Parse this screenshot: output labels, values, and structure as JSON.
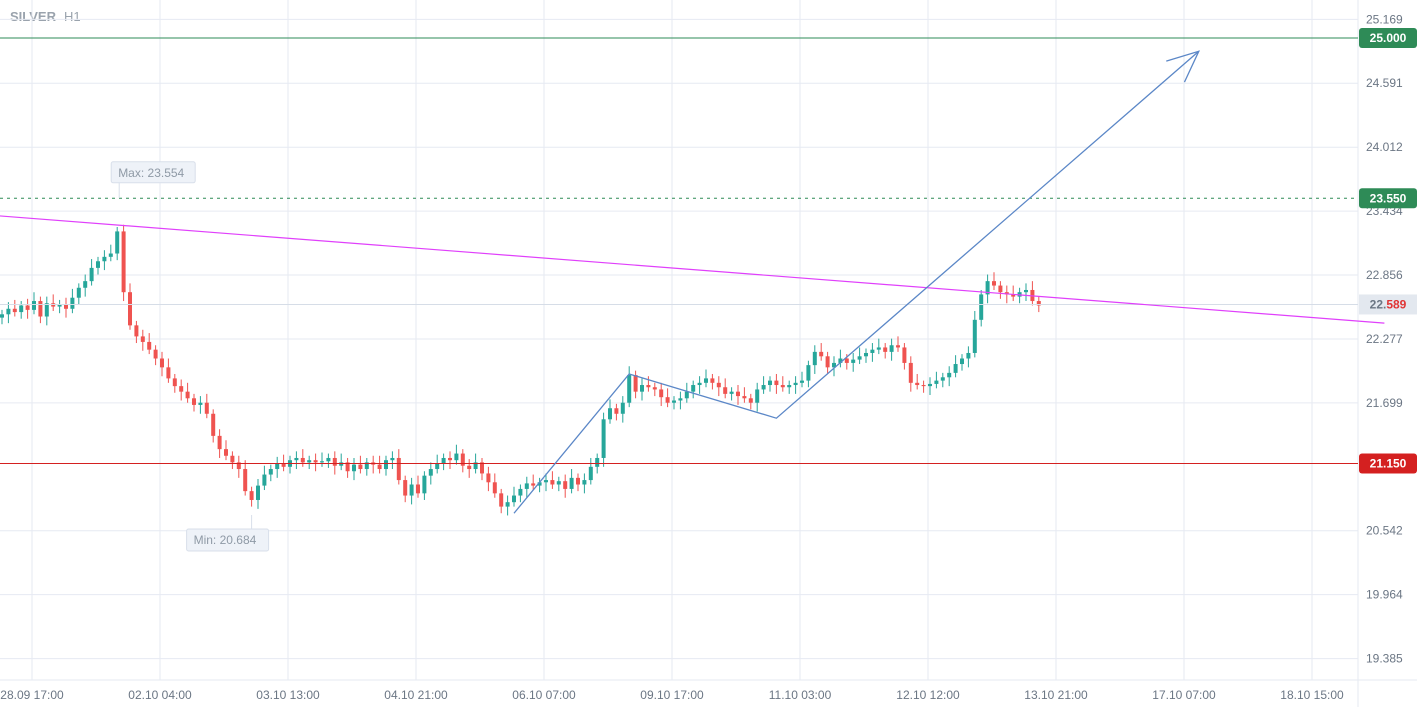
{
  "symbol": "SILVER",
  "timeframe": "H1",
  "colors": {
    "up": "#26a69a",
    "down": "#ef5350",
    "grid": "#e6eaf2",
    "resistance": "#2e8b57",
    "support": "#d42020",
    "trendline": "#e040fb",
    "projection": "#5b87c7",
    "dotted": "#2e8b57"
  },
  "chart_data": {
    "type": "candlestick",
    "y_ticks": [
      "25.169",
      "24.591",
      "24.012",
      "23.434",
      "22.856",
      "22.277",
      "21.699",
      "20.542",
      "19.964",
      "19.385"
    ],
    "ylim": [
      19.3,
      25.2
    ],
    "x_ticks": [
      "28.09 17:00",
      "02.10 04:00",
      "03.10 13:00",
      "04.10 21:00",
      "06.10 07:00",
      "09.10 17:00",
      "11.10 03:00",
      "12.10 12:00",
      "13.10 21:00",
      "17.10 07:00",
      "18.10 15:00"
    ],
    "levels": [
      {
        "name": "resistance",
        "value": 25.0,
        "label": "25.000"
      },
      {
        "name": "max-dotted",
        "value": 23.55,
        "label": "23.550"
      },
      {
        "name": "support",
        "value": 21.15,
        "label": "21.150"
      }
    ],
    "current_price": {
      "value": 22.589,
      "label_main": "22.",
      "label_tail": "589"
    },
    "max": {
      "value": 23.554,
      "label": "Max: 23.554"
    },
    "min": {
      "value": 20.684,
      "label": "Min: 20.684"
    },
    "trendline": {
      "from": [
        0,
        23.39
      ],
      "to": [
        216,
        22.42
      ]
    },
    "projection": {
      "points": [
        [
          80,
          20.7
        ],
        [
          98,
          21.96
        ],
        [
          121,
          21.56
        ],
        [
          187,
          24.88
        ]
      ]
    },
    "closes": [
      22.5,
      22.55,
      22.52,
      22.58,
      22.54,
      22.62,
      22.48,
      22.6,
      22.57,
      22.59,
      22.55,
      22.65,
      22.74,
      22.8,
      22.92,
      22.98,
      23.02,
      23.05,
      23.25,
      22.7,
      22.4,
      22.3,
      22.25,
      22.18,
      22.1,
      22.02,
      21.92,
      21.85,
      21.8,
      21.74,
      21.68,
      21.7,
      21.6,
      21.4,
      21.28,
      21.22,
      21.16,
      21.1,
      20.9,
      20.82,
      20.95,
      21.05,
      21.1,
      21.15,
      21.12,
      21.18,
      21.2,
      21.16,
      21.18,
      21.16,
      21.17,
      21.2,
      21.13,
      21.16,
      21.08,
      21.14,
      21.1,
      21.16,
      21.14,
      21.1,
      21.18,
      21.2,
      21.0,
      20.86,
      20.96,
      20.88,
      21.04,
      21.1,
      21.15,
      21.2,
      21.18,
      21.24,
      21.13,
      21.1,
      21.16,
      21.06,
      20.98,
      20.88,
      20.76,
      20.8,
      20.86,
      20.92,
      20.97,
      20.95,
      20.98,
      21.0,
      20.96,
      20.99,
      20.92,
      21.02,
      20.96,
      21.0,
      21.12,
      21.2,
      21.55,
      21.65,
      21.6,
      21.7,
      21.95,
      21.8,
      21.86,
      21.84,
      21.82,
      21.75,
      21.7,
      21.72,
      21.74,
      21.8,
      21.86,
      21.88,
      21.92,
      21.88,
      21.84,
      21.78,
      21.8,
      21.76,
      21.74,
      21.7,
      21.82,
      21.86,
      21.9,
      21.86,
      21.84,
      21.86,
      21.88,
      21.9,
      22.04,
      22.16,
      22.12,
      22.02,
      22.06,
      22.1,
      22.06,
      22.09,
      22.12,
      22.15,
      22.18,
      22.2,
      22.16,
      22.22,
      22.2,
      22.06,
      21.88,
      21.86,
      21.85,
      21.87,
      21.9,
      21.93,
      21.97,
      22.05,
      22.1,
      22.15,
      22.45,
      22.68,
      22.8,
      22.76,
      22.7,
      22.68,
      22.66,
      22.7,
      22.72,
      22.62,
      22.58
    ]
  }
}
